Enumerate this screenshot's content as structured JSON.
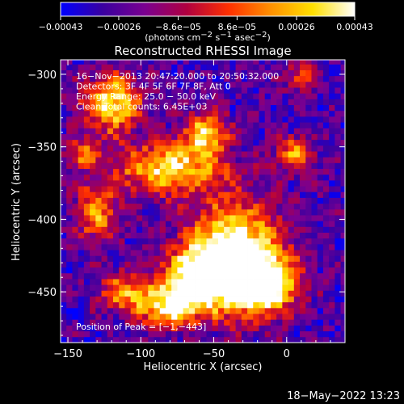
{
  "chart_data": {
    "type": "heatmap",
    "title": "Reconstructed RHESSI Image",
    "xlabel": "Heliocentric X (arcsec)",
    "ylabel": "Heliocentric Y (arcsec)",
    "xlim": [
      -155,
      40
    ],
    "ylim": [
      -485,
      -290
    ],
    "x_ticks": [
      -150,
      -100,
      -50,
      0
    ],
    "x_tick_labels": [
      "−150",
      "−100",
      "−50",
      "0"
    ],
    "y_ticks": [
      -300,
      -350,
      -400,
      -450
    ],
    "y_tick_labels": [
      "−300",
      "−350",
      "−400",
      "−450"
    ],
    "colorbar": {
      "vmin": -0.00043,
      "vmax": 0.00043,
      "ticks": [
        -0.00043,
        -0.00026,
        -8.6e-05,
        8.6e-05,
        0.00026,
        0.00043
      ],
      "tick_labels": [
        "−0.00043",
        "−0.00026",
        "−8.6e−05",
        "8.6e−05",
        "0.00026",
        "0.00043"
      ],
      "label_prefix": "(photons cm",
      "label_sup1": "−2",
      "label_mid": " s",
      "label_sup2": "−1",
      "label_mid2": " asec",
      "label_sup3": "−2",
      "label_suffix": ")",
      "colors": [
        "#0000ff",
        "#3a00a0",
        "#7a0090",
        "#b00040",
        "#ff3000",
        "#ff9000",
        "#ffe000",
        "#ffffff"
      ]
    },
    "annotations": [
      "16−Nov−2013 20:47:20.000 to 20:50:32.000",
      "Detectors: 3F 4F 5F 6F 7F 8F, Att 0",
      "Energy Range: 25.0 − 50.0 keV",
      "Clean    Total counts: 6.45E+03"
    ],
    "peak_label": "Position of Peak = [−1,−443]",
    "peak": {
      "x": -1,
      "y": -443
    },
    "blobs": [
      {
        "x": -35,
        "y": -425,
        "sx": 22,
        "sy": 25,
        "a": 1.0
      },
      {
        "x": -15,
        "y": -445,
        "sx": 14,
        "sy": 12,
        "a": 0.95
      },
      {
        "x": -60,
        "y": -440,
        "sx": 15,
        "sy": 14,
        "a": 0.85
      },
      {
        "x": -80,
        "y": -460,
        "sx": 14,
        "sy": 10,
        "a": 0.75
      },
      {
        "x": -80,
        "y": -365,
        "sx": 25,
        "sy": 12,
        "a": 0.75
      },
      {
        "x": -55,
        "y": -340,
        "sx": 10,
        "sy": 10,
        "a": 0.7
      },
      {
        "x": -120,
        "y": -320,
        "sx": 14,
        "sy": 14,
        "a": 0.75
      },
      {
        "x": -130,
        "y": -395,
        "sx": 10,
        "sy": 15,
        "a": 0.55
      },
      {
        "x": -110,
        "y": -450,
        "sx": 12,
        "sy": 10,
        "a": 0.55
      },
      {
        "x": 5,
        "y": -355,
        "sx": 9,
        "sy": 8,
        "a": 0.55
      },
      {
        "x": 10,
        "y": -300,
        "sx": 8,
        "sy": 8,
        "a": 0.4
      },
      {
        "x": -140,
        "y": -355,
        "sx": 7,
        "sy": 7,
        "a": 0.45
      }
    ],
    "base_level": 0.18,
    "noise_level": 0.2
  },
  "footer": {
    "timestamp": "18−May−2022 13:23"
  }
}
